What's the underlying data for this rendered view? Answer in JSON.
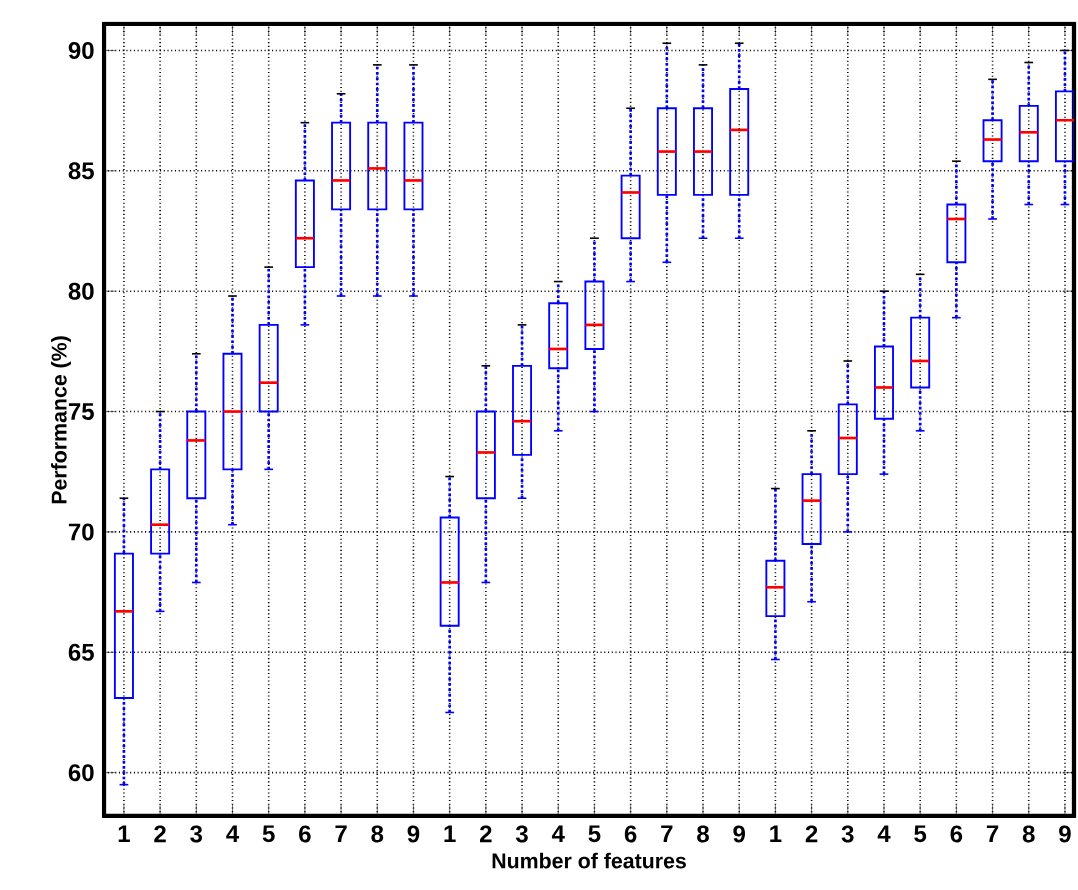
{
  "chart_data": {
    "type": "box",
    "xlabel": "Number of features",
    "ylabel": "Performance (%)",
    "categories": [
      "1",
      "2",
      "3",
      "4",
      "5",
      "6",
      "7",
      "8",
      "9",
      "1",
      "2",
      "3",
      "4",
      "5",
      "6",
      "7",
      "8",
      "9",
      "1",
      "2",
      "3",
      "4",
      "5",
      "6",
      "7",
      "8",
      "9"
    ],
    "color": "#0000ff",
    "grid": true,
    "ylim": [
      58.2,
      91.1
    ],
    "yticks": [
      60,
      65,
      70,
      75,
      80,
      85,
      90
    ],
    "boxes": [
      {
        "low": 59.5,
        "q1": 63.1,
        "median": 66.7,
        "q3": 69.1,
        "high": 71.4
      },
      {
        "low": 66.7,
        "q1": 69.1,
        "median": 70.3,
        "q3": 72.6,
        "high": 75.0
      },
      {
        "low": 67.9,
        "q1": 71.4,
        "median": 73.8,
        "q3": 75.0,
        "high": 77.4
      },
      {
        "low": 70.3,
        "q1": 72.6,
        "median": 75.0,
        "q3": 77.4,
        "high": 79.8
      },
      {
        "low": 72.6,
        "q1": 75.0,
        "median": 76.2,
        "q3": 78.6,
        "high": 81.0
      },
      {
        "low": 78.6,
        "q1": 81.0,
        "median": 82.2,
        "q3": 84.6,
        "high": 87.0
      },
      {
        "low": 79.8,
        "q1": 83.4,
        "median": 84.6,
        "q3": 87.0,
        "high": 88.2
      },
      {
        "low": 79.8,
        "q1": 83.4,
        "median": 85.1,
        "q3": 87.0,
        "high": 89.4
      },
      {
        "low": 79.8,
        "q1": 83.4,
        "median": 84.6,
        "q3": 87.0,
        "high": 89.4
      },
      {
        "low": 62.5,
        "q1": 66.1,
        "median": 67.9,
        "q3": 70.6,
        "high": 72.3
      },
      {
        "low": 67.9,
        "q1": 71.4,
        "median": 73.3,
        "q3": 75.0,
        "high": 76.9
      },
      {
        "low": 71.4,
        "q1": 73.2,
        "median": 74.6,
        "q3": 76.9,
        "high": 78.6
      },
      {
        "low": 74.2,
        "q1": 76.8,
        "median": 77.6,
        "q3": 79.5,
        "high": 80.4
      },
      {
        "low": 75.0,
        "q1": 77.6,
        "median": 78.6,
        "q3": 80.4,
        "high": 82.2
      },
      {
        "low": 80.4,
        "q1": 82.2,
        "median": 84.1,
        "q3": 84.8,
        "high": 87.6
      },
      {
        "low": 81.2,
        "q1": 84.0,
        "median": 85.8,
        "q3": 87.6,
        "high": 90.3
      },
      {
        "low": 82.2,
        "q1": 84.0,
        "median": 85.8,
        "q3": 87.6,
        "high": 89.4
      },
      {
        "low": 82.2,
        "q1": 84.0,
        "median": 86.7,
        "q3": 88.4,
        "high": 90.3
      },
      {
        "low": 64.7,
        "q1": 66.5,
        "median": 67.7,
        "q3": 68.8,
        "high": 71.8
      },
      {
        "low": 67.1,
        "q1": 69.5,
        "median": 71.3,
        "q3": 72.4,
        "high": 74.2
      },
      {
        "low": 70.0,
        "q1": 72.4,
        "median": 73.9,
        "q3": 75.3,
        "high": 77.1
      },
      {
        "low": 72.4,
        "q1": 74.7,
        "median": 76.0,
        "q3": 77.7,
        "high": 80.0
      },
      {
        "low": 74.2,
        "q1": 76.0,
        "median": 77.1,
        "q3": 78.9,
        "high": 80.7
      },
      {
        "low": 78.9,
        "q1": 81.2,
        "median": 83.0,
        "q3": 83.6,
        "high": 85.4
      },
      {
        "low": 83.0,
        "q1": 85.4,
        "median": 86.3,
        "q3": 87.1,
        "high": 88.8
      },
      {
        "low": 83.6,
        "q1": 85.4,
        "median": 86.6,
        "q3": 87.7,
        "high": 89.5
      },
      {
        "low": 83.6,
        "q1": 85.4,
        "median": 87.1,
        "q3": 88.3,
        "high": 90.0
      }
    ]
  }
}
